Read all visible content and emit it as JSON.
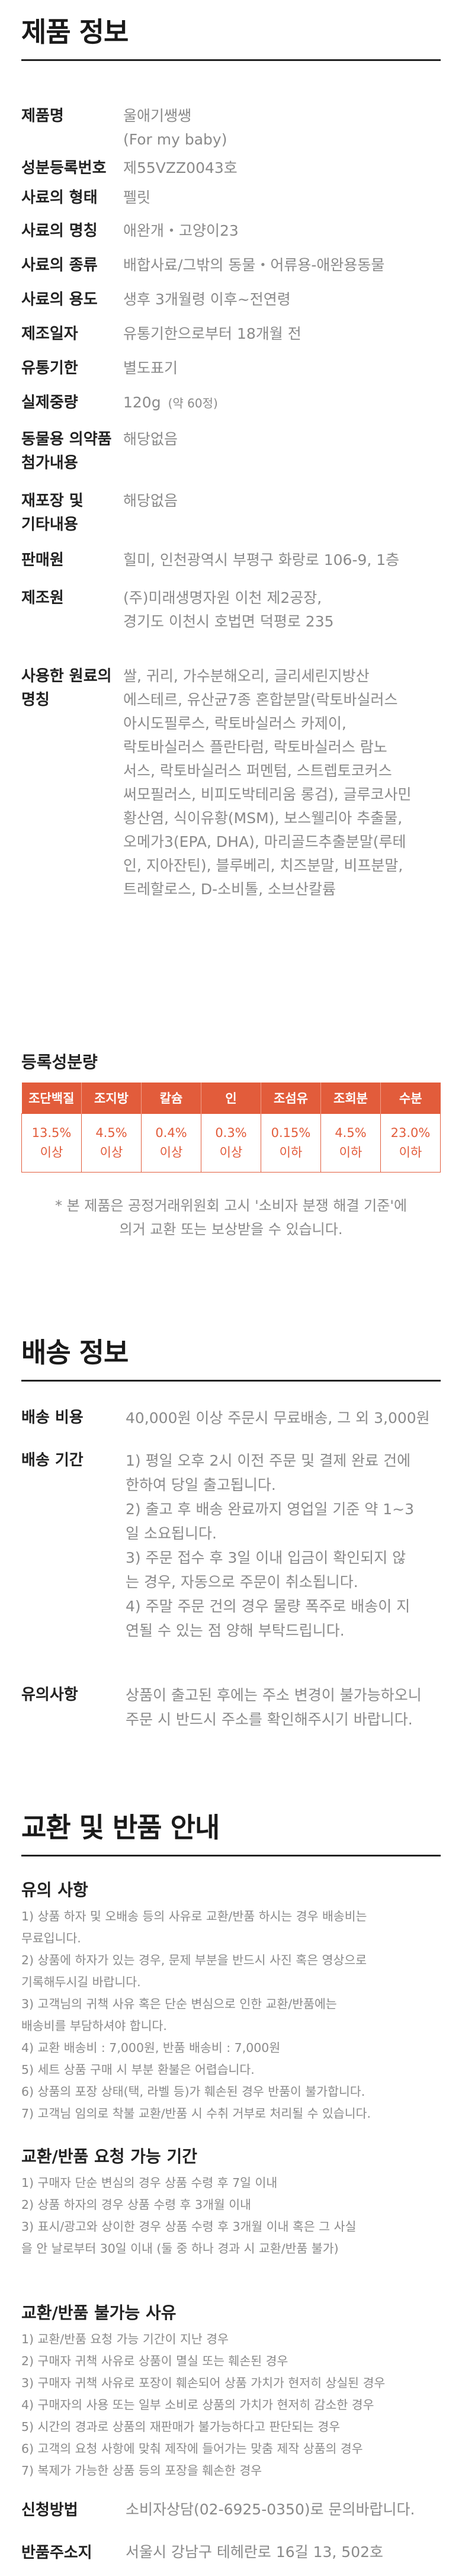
{
  "product_info": {
    "title": "제품 정보",
    "rows": [
      {
        "label": [
          "제품명"
        ],
        "value": [
          "울애기쌩쌩",
          "(For my baby)"
        ]
      },
      {
        "label": [
          "성분등록번호"
        ],
        "value": [
          "제55VZZ0043호"
        ]
      },
      {
        "label": [
          "사료의 형태"
        ],
        "value": [
          "펠릿"
        ]
      },
      {
        "label": [
          "사료의 명칭"
        ],
        "value": [
          "애완개・고양이23"
        ]
      },
      {
        "label": [
          "사료의 종류"
        ],
        "value": [
          "배합사료/그밖의 동물・어류용-애완용동물"
        ]
      },
      {
        "label": [
          "사료의 용도"
        ],
        "value": [
          "생후 3개월령 이후~전연령"
        ]
      },
      {
        "label": [
          "제조일자"
        ],
        "value": [
          "유통기한으로부터 18개월 전"
        ]
      },
      {
        "label": [
          "유통기한"
        ],
        "value": [
          "별도표기"
        ]
      },
      {
        "label": [
          "실제중량"
        ],
        "value": [
          "120g"
        ],
        "note": "(약 60정)"
      },
      {
        "label": [
          "동물용 의약품",
          "첨가내용"
        ],
        "value": [
          "해당없음"
        ]
      },
      {
        "label": [
          "재포장 및",
          "기타내용"
        ],
        "value": [
          "해당없음"
        ]
      },
      {
        "label": [
          "판매원"
        ],
        "value": [
          "힐미, 인천광역시 부평구 화랑로 106-9, 1층"
        ]
      },
      {
        "label": [
          "제조원"
        ],
        "value": [
          "(주)미래생명자원 이천 제2공장,",
          "경기도 이천시 호법면 덕평로 235"
        ]
      },
      {
        "label": [
          "사용한 원료의",
          "명칭"
        ],
        "value": [
          "쌀, 귀리, 가수분해오리, 글리세린지방산",
          "에스테르, 유산균7종 혼합분말(락토바실러스",
          "아시도필루스, 락토바실러스 카제이,",
          "락토바실러스 플란타럼, 락토바실러스 람노",
          "서스, 락토바실러스 퍼멘텀, 스트렙토코커스",
          "써모필러스, 비피도박테리움 롱검), 글루코사민",
          "황산염, 식이유황(MSM), 보스웰리아 추출물,",
          "오메가3(EPA, DHA), 마리골드추출분말(루테",
          "인, 지아잔틴), 블루베리, 치즈분말, 비프분말,",
          "트레할로스, D-소비톨, 소브산칼륨"
        ]
      }
    ]
  },
  "nutrition": {
    "heading": "등록성분량",
    "headers": [
      "조단백질",
      "조지방",
      "칼슘",
      "인",
      "조섬유",
      "조회분",
      "수분"
    ],
    "values": [
      [
        "13.5%",
        "이상"
      ],
      [
        "4.5%",
        "이상"
      ],
      [
        "0.4%",
        "이상"
      ],
      [
        "0.3%",
        "이상"
      ],
      [
        "0.15%",
        "이하"
      ],
      [
        "4.5%",
        "이하"
      ],
      [
        "23.0%",
        "이하"
      ]
    ],
    "notice": [
      "* 본 제품은 공정거래위원회 고시 '소비자 분쟁 해결 기준'에",
      "의거 교환 또는 보상받을 수 있습니다."
    ]
  },
  "shipping": {
    "title": "배송 정보",
    "cost_label": "배송 비용",
    "cost_value": "40,000원 이상 주문시 무료배송, 그 외 3,000원",
    "period_label": "배송 기간",
    "period_lines": [
      "1) 평일 오후 2시 이전 주문 및 결제 완료 건에",
      "한하여 당일 출고됩니다.",
      "2) 출고 후 배송 완료까지 영업일 기준 약 1~3",
      "일 소요됩니다.",
      "3) 주문 접수 후 3일 이내 입금이 확인되지 않",
      "는 경우, 자동으로 주문이 취소됩니다.",
      "4) 주말 주문 건의 경우 물량 폭주로 배송이 지",
      "연될 수 있는 점 양해 부탁드립니다."
    ],
    "notes_label": "유의사항",
    "notes_lines": [
      "상품이 출고된 후에는 주소 변경이 불가능하오니",
      "주문 시 반드시 주소를 확인해주시기 바랍니다."
    ]
  },
  "exchange": {
    "title": "교환 및 반품 안내",
    "caution_heading": "유의 사항",
    "caution_lines": [
      "1) 상품 하자 및 오배송 등의 사유로 교환/반품 하시는 경우 배송비는",
      "무료입니다.",
      "2) 상품에 하자가 있는 경우, 문제 부분을 반드시 사진 혹은 영상으로",
      "기록해두시길 바랍니다.",
      "3) 고객님의 귀책 사유 혹은 단순 변심으로 인한 교환/반품에는",
      "배송비를 부담하셔야 합니다.",
      "4) 교환 배송비 : 7,000원, 반품 배송비 : 7,000원",
      "5) 세트 상품 구매 시 부분 환불은 어렵습니다.",
      "6) 상품의 포장 상태(택, 라벨 등)가 훼손된 경우 반품이 불가합니다.",
      "7) 고객님 임의로 착불 교환/반품 시 수취 거부로 처리될 수 있습니다."
    ],
    "possible_heading": "교환/반품 요청 가능 기간",
    "possible_lines": [
      "1) 구매자 단순 변심의 경우 상품 수령 후 7일 이내",
      "2) 상품 하자의 경우 상품 수령 후 3개월 이내",
      "3) 표시/광고와 상이한 경우 상품 수령 후 3개월 이내 혹은 그 사실",
      "을    안 날로부터 30일 이내 (둘 중 하나 경과 시 교환/반품 불가)"
    ],
    "impossible_heading": "교환/반품 불가능 사유",
    "impossible_lines": [
      "1) 교환/반품 요청 가능 기간이 지난 경우",
      "2) 구매자 귀책 사유로 상품이 멸실 또는 훼손된 경우",
      "3) 구매자 귀책 사유로 포장이 훼손되어 상품 가치가 현저히 상실된 경우",
      "4) 구매자의 사용 또는 일부 소비로 상품의 가치가 현저히 감소한 경우",
      "5) 시간의 경과로 상품의 재판매가 불가능하다고 판단되는 경우",
      "6) 고객의 요청 사항에 맞춰 제작에 들어가는 맞춤 제작 상품의 경우",
      "7) 복제가 가능한 상품 등의 포장을 훼손한 경우"
    ],
    "apply_label": "신청방법",
    "apply_value": "소비자상담(02-6925-0350)로 문의바랍니다.",
    "address_label": "반품주소지",
    "address_value": "서울시 강남구 테헤란로 16길 13, 502호"
  }
}
